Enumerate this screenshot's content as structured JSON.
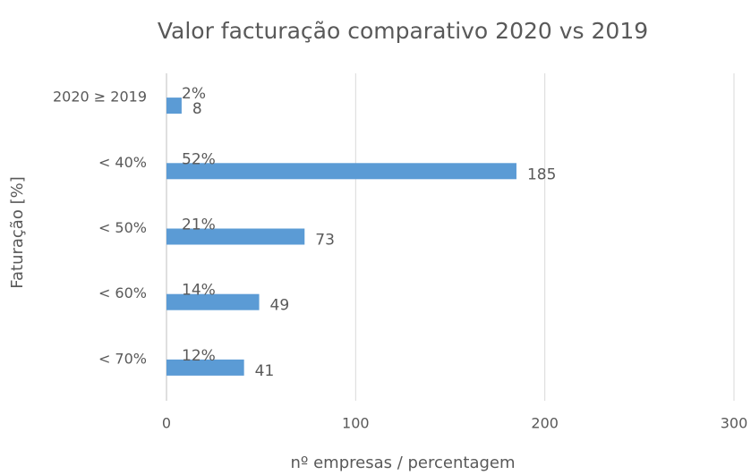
{
  "chart_data": {
    "type": "hbar",
    "title": "Valor facturação comparativo 2020 vs 2019",
    "x_label": "nº empresas / percentagem",
    "y_label": "Faturação [%]",
    "categories": [
      "2020 ≥ 2019",
      "< 40%",
      "< 50%",
      "< 60%",
      "< 70%"
    ],
    "values": [
      8,
      185,
      73,
      49,
      41
    ],
    "percentages": {
      "values": [
        2,
        52,
        21,
        14,
        12
      ],
      "value_labels": [
        "2%",
        "52%",
        "21%",
        "14%",
        "12%"
      ]
    },
    "color": "#5b9bd5",
    "xlim": [
      0,
      300
    ],
    "xticks": [
      0,
      100,
      200,
      300
    ],
    "grid": true
  }
}
